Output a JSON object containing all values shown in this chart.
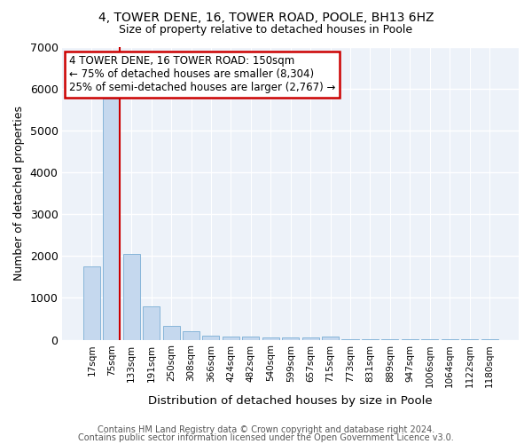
{
  "title1": "4, TOWER DENE, 16, TOWER ROAD, POOLE, BH13 6HZ",
  "title2": "Size of property relative to detached houses in Poole",
  "xlabel": "Distribution of detached houses by size in Poole",
  "ylabel": "Number of detached properties",
  "categories": [
    "17sqm",
    "75sqm",
    "133sqm",
    "191sqm",
    "250sqm",
    "308sqm",
    "366sqm",
    "424sqm",
    "482sqm",
    "540sqm",
    "599sqm",
    "657sqm",
    "715sqm",
    "773sqm",
    "831sqm",
    "889sqm",
    "947sqm",
    "1006sqm",
    "1064sqm",
    "1122sqm",
    "1180sqm"
  ],
  "values": [
    1750,
    5750,
    2050,
    800,
    330,
    200,
    95,
    75,
    65,
    60,
    55,
    50,
    80,
    15,
    12,
    10,
    8,
    8,
    6,
    5,
    4
  ],
  "bar_color": "#c5d8ee",
  "bar_edge_color": "#7aaed4",
  "red_line_x": 1.43,
  "annotation_line1": "4 TOWER DENE, 16 TOWER ROAD: 150sqm",
  "annotation_line2": "← 75% of detached houses are smaller (8,304)",
  "annotation_line3": "25% of semi-detached houses are larger (2,767) →",
  "annotation_border_color": "#cc0000",
  "ylim": [
    0,
    7000
  ],
  "yticks": [
    0,
    1000,
    2000,
    3000,
    4000,
    5000,
    6000,
    7000
  ],
  "footer1": "Contains HM Land Registry data © Crown copyright and database right 2024.",
  "footer2": "Contains public sector information licensed under the Open Government Licence v3.0.",
  "plot_bg_color": "#edf2f9"
}
